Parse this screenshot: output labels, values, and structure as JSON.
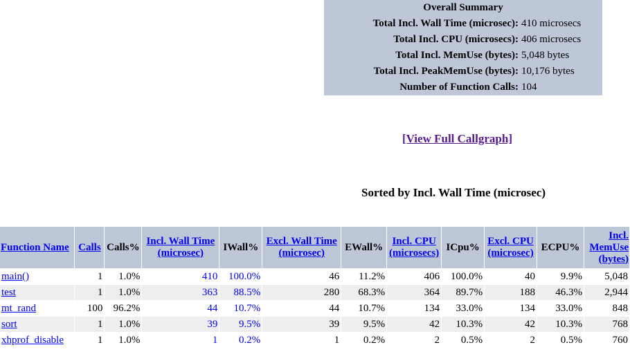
{
  "summary": {
    "title": "Overall Summary",
    "rows": [
      {
        "key": "Total Incl. Wall Time (microsec):",
        "value": "410 microsecs"
      },
      {
        "key": "Total Incl. CPU (microsecs):",
        "value": "406 microsecs"
      },
      {
        "key": "Total Incl. MemUse (bytes):",
        "value": "5,048 bytes"
      },
      {
        "key": "Total Incl. PeakMemUse (bytes):",
        "value": "10,176 bytes"
      },
      {
        "key": "Number of Function Calls:",
        "value": "104"
      }
    ]
  },
  "callgraph_link": "[View Full Callgraph]",
  "sort_heading": "Sorted by Incl. Wall Time (microsec)",
  "table": {
    "headers": {
      "function_name": "Function Name",
      "calls": "Calls",
      "calls_pct": "Calls%",
      "incl_wall_1": "Incl. Wall Time",
      "incl_wall_2": "(microsec)",
      "iwall_pct": "IWall%",
      "excl_wall_1": "Excl. Wall Time",
      "excl_wall_2": "(microsec)",
      "ewall_pct": "EWall%",
      "incl_cpu_1": "Incl. CPU",
      "incl_cpu_2": "(microsecs)",
      "icpu_pct": "ICpu%",
      "excl_cpu_1": "Excl. CPU",
      "excl_cpu_2": "(microsec)",
      "ecpu_pct": "ECPU%",
      "incl_mem_1": "Incl.",
      "incl_mem_2": "MemUse",
      "incl_mem_3": "(bytes)"
    },
    "rows": [
      {
        "name": "main()",
        "calls": "1",
        "calls_pct": "1.0%",
        "incl_wall": "410",
        "iwall_pct": "100.0%",
        "excl_wall": "46",
        "ewall_pct": "11.2%",
        "incl_cpu": "406",
        "icpu_pct": "100.0%",
        "excl_cpu": "40",
        "ecpu_pct": "9.9%",
        "incl_mem": "5,048"
      },
      {
        "name": "test",
        "calls": "1",
        "calls_pct": "1.0%",
        "incl_wall": "363",
        "iwall_pct": "88.5%",
        "excl_wall": "280",
        "ewall_pct": "68.3%",
        "incl_cpu": "364",
        "icpu_pct": "89.7%",
        "excl_cpu": "188",
        "ecpu_pct": "46.3%",
        "incl_mem": "2,944"
      },
      {
        "name": "mt_rand",
        "calls": "100",
        "calls_pct": "96.2%",
        "incl_wall": "44",
        "iwall_pct": "10.7%",
        "excl_wall": "44",
        "ewall_pct": "10.7%",
        "incl_cpu": "134",
        "icpu_pct": "33.0%",
        "excl_cpu": "134",
        "ecpu_pct": "33.0%",
        "incl_mem": "848"
      },
      {
        "name": "sort",
        "calls": "1",
        "calls_pct": "1.0%",
        "incl_wall": "39",
        "iwall_pct": "9.5%",
        "excl_wall": "39",
        "ewall_pct": "9.5%",
        "incl_cpu": "42",
        "icpu_pct": "10.3%",
        "excl_cpu": "42",
        "ecpu_pct": "10.3%",
        "incl_mem": "768"
      },
      {
        "name": "xhprof_disable",
        "calls": "1",
        "calls_pct": "1.0%",
        "incl_wall": "1",
        "iwall_pct": "0.2%",
        "excl_wall": "1",
        "ewall_pct": "0.2%",
        "incl_cpu": "2",
        "icpu_pct": "0.5%",
        "excl_cpu": "2",
        "ecpu_pct": "0.5%",
        "incl_mem": "760"
      }
    ]
  }
}
